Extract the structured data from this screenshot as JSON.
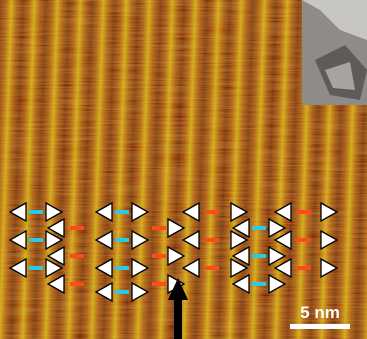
{
  "scale_bar": {
    "label": "5 nm"
  }
}
